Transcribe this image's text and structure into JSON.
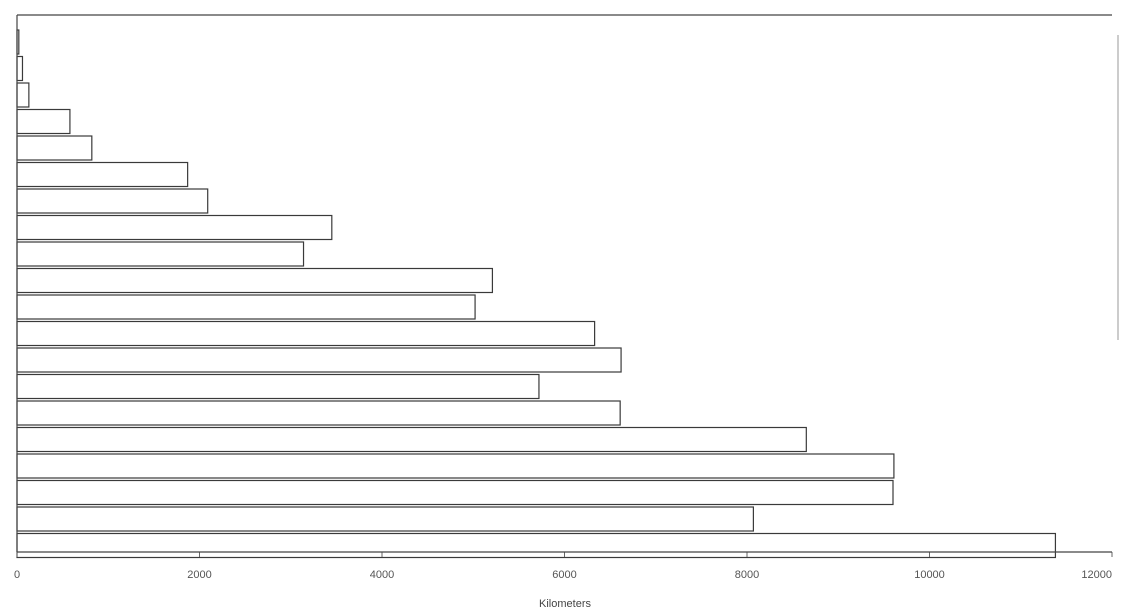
{
  "chart_data": {
    "type": "bar",
    "orientation": "horizontal",
    "title": "",
    "xlabel": "Kilometers",
    "ylabel": "",
    "xlim": [
      0,
      12000
    ],
    "x_ticks": [
      "0",
      "2000",
      "4000",
      "6000",
      "8000",
      "10000",
      "12000"
    ],
    "grid": false,
    "legend": "none",
    "values": [
      20,
      60,
      130,
      580,
      820,
      1870,
      2090,
      3450,
      3140,
      5210,
      5020,
      6330,
      6620,
      5720,
      6610,
      8650,
      9610,
      9600,
      8070,
      11380
    ]
  }
}
